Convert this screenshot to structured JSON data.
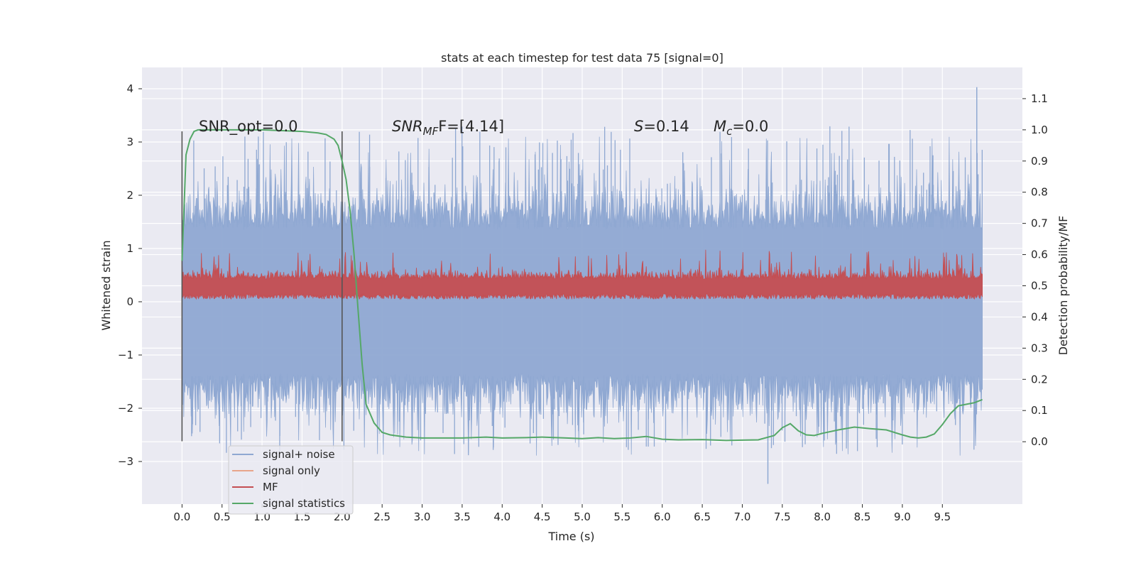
{
  "chart_data": {
    "type": "line",
    "title": "stats at each timestep for test data 75 [signal=0]",
    "xlabel": "Time (s)",
    "ylabel": "Whitened strain",
    "ylabel_right": "Detection probability/MF",
    "xlim": [
      -0.5,
      10.5
    ],
    "ylim": [
      -3.8,
      4.4
    ],
    "ylim_right": [
      -0.2,
      1.2
    ],
    "grid": true,
    "x_ticks": [
      "0.0",
      "0.5",
      "1.0",
      "1.5",
      "2.0",
      "2.5",
      "3.0",
      "3.5",
      "4.0",
      "4.5",
      "5.0",
      "5.5",
      "6.0",
      "6.5",
      "7.0",
      "7.5",
      "8.0",
      "8.5",
      "9.0",
      "9.5"
    ],
    "y_ticks": [
      "−3",
      "−2",
      "−1",
      "0",
      "1",
      "2",
      "3",
      "4"
    ],
    "y_ticks_right": [
      "0.0",
      "0.1",
      "0.2",
      "0.3",
      "0.4",
      "0.5",
      "0.6",
      "0.7",
      "0.8",
      "0.9",
      "1.0",
      "1.1"
    ],
    "vlines": [
      0.0,
      2.0
    ],
    "vline_range": [
      -2.62,
      3.2
    ],
    "annotations": {
      "snr_opt": "SNR_opt=0.0",
      "snr_mf_main": "SNR",
      "snr_mf_sub": "MF",
      "snr_mf_rest": "F=[4.14]",
      "s_main": "S",
      "s_rest": "=0.14",
      "mc_main": "M",
      "mc_sub": "c",
      "mc_rest": "=0.0"
    },
    "legend": {
      "position": "lower-left",
      "entries": [
        {
          "label": "signal+ noise",
          "color": "#8fa8d2"
        },
        {
          "label": "signal only",
          "color": "#e8a58a"
        },
        {
          "label": "MF",
          "color": "#c44e52"
        },
        {
          "label": "signal statistics",
          "color": "#55a868"
        }
      ]
    },
    "series": [
      {
        "name": "signal+ noise",
        "axis": "left",
        "color": "#8fa8d2",
        "x_range": [
          0.0,
          10.0
        ],
        "envelope_typical": [
          -1.5,
          1.5
        ],
        "extremes_max": 4.03,
        "extremes_min": -3.42
      },
      {
        "name": "signal only",
        "axis": "left",
        "color": "#e8a58a",
        "x_range": [
          0.0,
          10.0
        ],
        "values": 0
      },
      {
        "name": "MF",
        "axis": "left",
        "color": "#c44e52",
        "x_range": [
          0.0,
          10.0
        ],
        "envelope": [
          0.0,
          0.55
        ],
        "extremes_max": 0.98
      },
      {
        "name": "signal statistics",
        "axis": "right",
        "color": "#55a868",
        "x": [
          0.0,
          0.05,
          0.1,
          0.15,
          0.2,
          0.3,
          0.5,
          0.8,
          1.0,
          1.2,
          1.5,
          1.7,
          1.8,
          1.9,
          1.95,
          2.0,
          2.05,
          2.1,
          2.15,
          2.2,
          2.25,
          2.3,
          2.4,
          2.5,
          2.6,
          2.8,
          3.0,
          3.5,
          3.8,
          4.0,
          4.3,
          4.5,
          4.8,
          5.0,
          5.2,
          5.4,
          5.6,
          5.8,
          6.0,
          6.2,
          6.5,
          6.8,
          7.0,
          7.2,
          7.4,
          7.5,
          7.6,
          7.7,
          7.8,
          7.9,
          8.0,
          8.2,
          8.4,
          8.6,
          8.8,
          9.0,
          9.1,
          9.2,
          9.3,
          9.4,
          9.5,
          9.6,
          9.7,
          9.8,
          9.9,
          10.0
        ],
        "values": [
          0.58,
          0.92,
          0.97,
          0.995,
          1.0,
          1.0,
          1.0,
          1.0,
          1.0,
          0.998,
          0.995,
          0.99,
          0.985,
          0.97,
          0.95,
          0.9,
          0.84,
          0.74,
          0.6,
          0.42,
          0.25,
          0.12,
          0.06,
          0.03,
          0.022,
          0.015,
          0.012,
          0.012,
          0.015,
          0.012,
          0.013,
          0.015,
          0.012,
          0.01,
          0.013,
          0.01,
          0.012,
          0.017,
          0.008,
          0.006,
          0.007,
          0.004,
          0.005,
          0.006,
          0.02,
          0.045,
          0.058,
          0.035,
          0.022,
          0.02,
          0.027,
          0.038,
          0.047,
          0.042,
          0.038,
          0.022,
          0.015,
          0.012,
          0.015,
          0.025,
          0.055,
          0.09,
          0.115,
          0.12,
          0.125,
          0.135
        ]
      }
    ]
  }
}
